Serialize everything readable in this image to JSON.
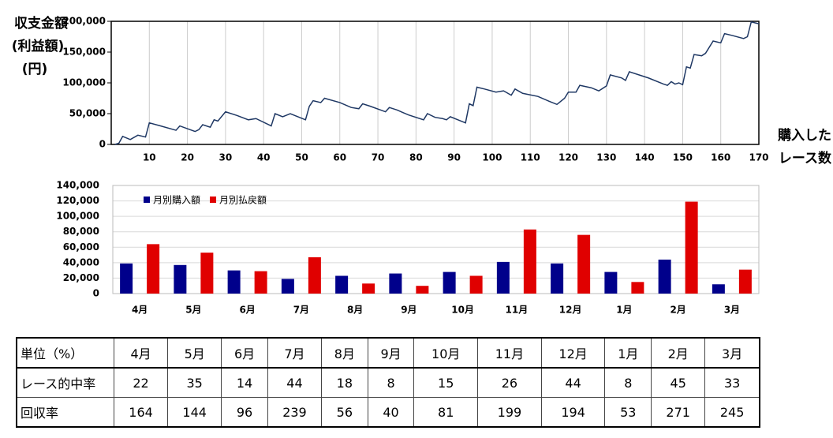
{
  "chart_data": [
    {
      "type": "line",
      "ylabel": [
        "収支金額",
        "(利益額)",
        "(円)"
      ],
      "xlabel": [
        "購入した",
        "レース数"
      ],
      "x": [
        1,
        2,
        3,
        5,
        7,
        9,
        10,
        13,
        17,
        18,
        22,
        23,
        24,
        26,
        27,
        28,
        30,
        33,
        36,
        38,
        42,
        43,
        45,
        47,
        49,
        51,
        52,
        53,
        55,
        56,
        60,
        63,
        65,
        66,
        68,
        72,
        73,
        75,
        78,
        82,
        83,
        85,
        87,
        88,
        89,
        91,
        93,
        94,
        95,
        96,
        98,
        101,
        103,
        105,
        106,
        108,
        112,
        115,
        117,
        119,
        120,
        122,
        123,
        126,
        128,
        130,
        131,
        134,
        135,
        136,
        139,
        141,
        145,
        146,
        147,
        148,
        149,
        150,
        151,
        152,
        153,
        155,
        156,
        158,
        160,
        161,
        163,
        166,
        167,
        168,
        170
      ],
      "values": [
        0,
        2000,
        13000,
        8000,
        15000,
        12000,
        35000,
        30000,
        23000,
        30000,
        21000,
        24000,
        32000,
        28000,
        40000,
        38000,
        53000,
        47000,
        40000,
        42000,
        30000,
        50000,
        45000,
        50000,
        45000,
        40000,
        62000,
        71000,
        68000,
        75000,
        68000,
        60000,
        58000,
        66000,
        62000,
        53000,
        60000,
        56000,
        48000,
        40000,
        50000,
        44000,
        42000,
        40000,
        45000,
        40000,
        35000,
        66000,
        63000,
        93000,
        90000,
        85000,
        87000,
        80000,
        90000,
        83000,
        78000,
        70000,
        65000,
        75000,
        85000,
        85000,
        96000,
        92000,
        87000,
        95000,
        113000,
        108000,
        104000,
        118000,
        112000,
        108000,
        98000,
        96000,
        102000,
        98000,
        100000,
        97000,
        126000,
        124000,
        146000,
        144000,
        148000,
        168000,
        165000,
        180000,
        177000,
        172000,
        175000,
        199000,
        196000
      ],
      "color": "#1f3864",
      "xlim": [
        0,
        170
      ],
      "xticks": [
        10,
        20,
        30,
        40,
        50,
        60,
        70,
        80,
        90,
        100,
        110,
        120,
        130,
        140,
        150,
        160,
        170
      ],
      "ylim": [
        0,
        200000
      ],
      "yticks": [
        0,
        {
          "value": 50000,
          "label": "50,000"
        },
        {
          "value": 100000,
          "label": "100,000"
        },
        {
          "value": 150000,
          "label": "150,000"
        },
        {
          "value": 200000,
          "label": "200,000"
        }
      ],
      "grid": "x"
    },
    {
      "type": "bar",
      "categories": [
        "4月",
        "5月",
        "6月",
        "7月",
        "8月",
        "9月",
        "10月",
        "11月",
        "12月",
        "1月",
        "2月",
        "3月"
      ],
      "series": [
        {
          "name": "月別購入額",
          "color": "#00008b",
          "values": [
            39000,
            37000,
            30000,
            19000,
            23000,
            26000,
            28000,
            41000,
            39000,
            28000,
            44000,
            12000
          ]
        },
        {
          "name": "月別払戻額",
          "color": "#e00000",
          "values": [
            64000,
            53000,
            29000,
            47000,
            13000,
            10000,
            23000,
            83000,
            76000,
            15000,
            119000,
            31000
          ]
        }
      ],
      "ylim": [
        0,
        140000
      ],
      "yticks": [
        0,
        {
          "value": 20000,
          "label": "20,000"
        },
        {
          "value": 40000,
          "label": "40,000"
        },
        {
          "value": 60000,
          "label": "60,000"
        },
        {
          "value": 80000,
          "label": "80,000"
        },
        {
          "value": 100000,
          "label": "100,000"
        },
        {
          "value": 120000,
          "label": "120,000"
        },
        {
          "value": 140000,
          "label": "140,000"
        }
      ],
      "grid": "y",
      "legend": "top-left"
    }
  ],
  "table": {
    "header": [
      "単位（%）",
      "4月",
      "5月",
      "6月",
      "7月",
      "8月",
      "9月",
      "10月",
      "11月",
      "12月",
      "1月",
      "2月",
      "3月"
    ],
    "rows": [
      [
        "レース的中率",
        22,
        35,
        14,
        44,
        18,
        8,
        15,
        26,
        44,
        8,
        45,
        33
      ],
      [
        "回収率",
        164,
        144,
        96,
        239,
        56,
        40,
        81,
        199,
        194,
        53,
        271,
        245
      ]
    ]
  }
}
